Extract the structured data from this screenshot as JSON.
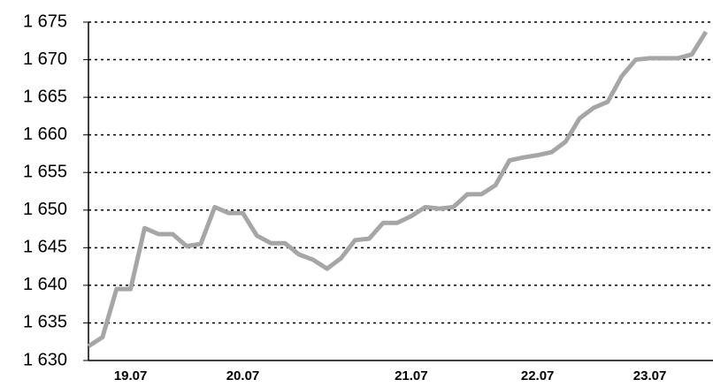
{
  "chart_data": {
    "type": "line",
    "categories": [
      null,
      null,
      null,
      "19.07",
      null,
      null,
      null,
      null,
      null,
      null,
      null,
      "20.07",
      null,
      null,
      null,
      null,
      null,
      null,
      null,
      null,
      null,
      null,
      null,
      "21.07",
      null,
      null,
      null,
      null,
      null,
      null,
      null,
      null,
      "22.07",
      null,
      null,
      null,
      null,
      null,
      null,
      null,
      "23.07",
      null,
      null,
      null,
      null
    ],
    "series": [
      {
        "color": "#a6a6a6",
        "values": [
          1631.9,
          1633.1,
          1639.5,
          1639.5,
          1647.6,
          1646.8,
          1646.8,
          1645.2,
          1645.5,
          1650.4,
          1649.6,
          1649.6,
          1646.6,
          1645.6,
          1645.6,
          1644.1,
          1643.4,
          1642.2,
          1643.6,
          1646.0,
          1646.2,
          1648.3,
          1648.3,
          1649.2,
          1650.4,
          1650.2,
          1650.4,
          1652.1,
          1652.1,
          1653.3,
          1656.6,
          1657.0,
          1657.3,
          1657.7,
          1659.1,
          1662.2,
          1663.6,
          1664.4,
          1667.8,
          1670.0,
          1670.2,
          1670.2,
          1670.2,
          1670.7,
          1673.7
        ]
      }
    ],
    "ylim": [
      1630,
      1675
    ],
    "yticks": [
      {
        "value": 1630,
        "label": "1 630"
      },
      {
        "value": 1635,
        "label": "1 635"
      },
      {
        "value": 1640,
        "label": "1 640"
      },
      {
        "value": 1645,
        "label": "1 645"
      },
      {
        "value": 1650,
        "label": "1 650"
      },
      {
        "value": 1655,
        "label": "1 655"
      },
      {
        "value": 1660,
        "label": "1 660"
      },
      {
        "value": 1665,
        "label": "1 665"
      },
      {
        "value": 1670,
        "label": "1 670"
      },
      {
        "value": 1675,
        "label": "1 675"
      }
    ],
    "grid": true
  }
}
